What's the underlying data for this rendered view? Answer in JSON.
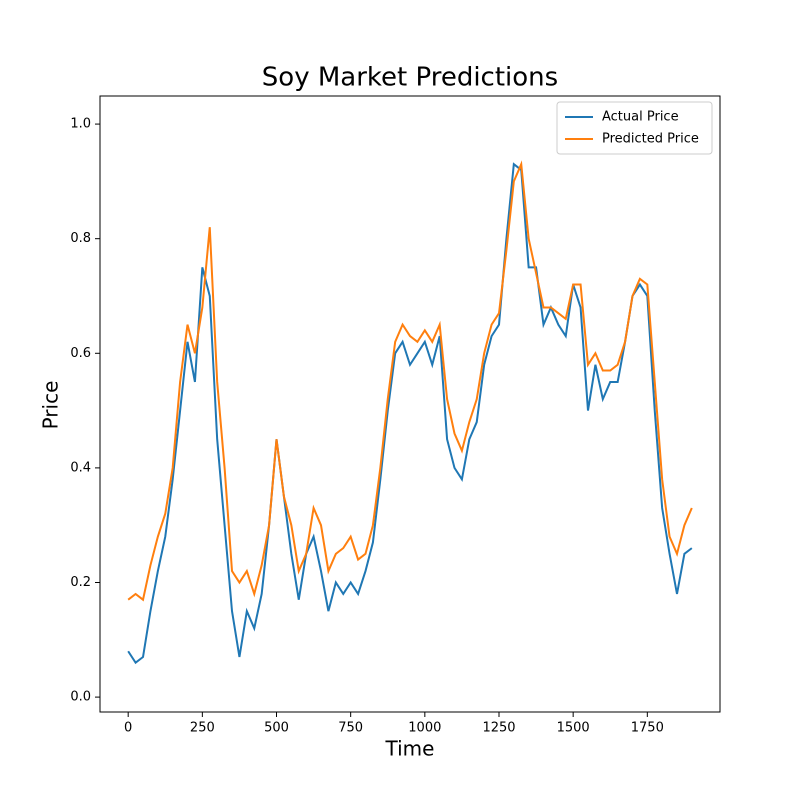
{
  "chart_data": {
    "type": "line",
    "title": "Soy Market Predictions",
    "x_label": "Time",
    "y_label": "Price",
    "x": [
      0,
      25,
      50,
      75,
      100,
      125,
      150,
      175,
      200,
      225,
      250,
      275,
      300,
      325,
      350,
      375,
      400,
      425,
      450,
      475,
      500,
      525,
      550,
      575,
      600,
      625,
      650,
      675,
      700,
      725,
      750,
      775,
      800,
      825,
      850,
      875,
      900,
      925,
      950,
      975,
      1000,
      1025,
      1050,
      1075,
      1100,
      1125,
      1150,
      1175,
      1200,
      1225,
      1250,
      1275,
      1300,
      1325,
      1350,
      1375,
      1400,
      1425,
      1450,
      1475,
      1500,
      1525,
      1550,
      1575,
      1600,
      1625,
      1650,
      1675,
      1700,
      1725,
      1750,
      1775,
      1800,
      1825,
      1850,
      1875,
      1900
    ],
    "series": [
      {
        "name": "Actual Price",
        "color": "#1f77b4",
        "values": [
          0.08,
          0.06,
          0.07,
          0.15,
          0.22,
          0.28,
          0.38,
          0.5,
          0.62,
          0.55,
          0.75,
          0.7,
          0.45,
          0.3,
          0.15,
          0.07,
          0.15,
          0.12,
          0.18,
          0.3,
          0.45,
          0.35,
          0.25,
          0.17,
          0.25,
          0.28,
          0.22,
          0.15,
          0.2,
          0.18,
          0.2,
          0.18,
          0.22,
          0.27,
          0.38,
          0.5,
          0.6,
          0.62,
          0.58,
          0.6,
          0.62,
          0.58,
          0.63,
          0.45,
          0.4,
          0.38,
          0.45,
          0.48,
          0.58,
          0.63,
          0.65,
          0.8,
          0.93,
          0.92,
          0.75,
          0.75,
          0.65,
          0.68,
          0.65,
          0.63,
          0.72,
          0.68,
          0.5,
          0.58,
          0.52,
          0.55,
          0.55,
          0.62,
          0.7,
          0.72,
          0.7,
          0.5,
          0.33,
          0.25,
          0.18,
          0.25,
          0.26
        ]
      },
      {
        "name": "Predicted Price",
        "color": "#ff7f0e",
        "values": [
          0.17,
          0.18,
          0.17,
          0.23,
          0.28,
          0.32,
          0.4,
          0.55,
          0.65,
          0.6,
          0.68,
          0.82,
          0.55,
          0.4,
          0.22,
          0.2,
          0.22,
          0.18,
          0.23,
          0.3,
          0.45,
          0.35,
          0.3,
          0.22,
          0.25,
          0.33,
          0.3,
          0.22,
          0.25,
          0.26,
          0.28,
          0.24,
          0.25,
          0.3,
          0.4,
          0.52,
          0.62,
          0.65,
          0.63,
          0.62,
          0.64,
          0.62,
          0.65,
          0.52,
          0.46,
          0.43,
          0.48,
          0.52,
          0.6,
          0.65,
          0.67,
          0.78,
          0.9,
          0.93,
          0.8,
          0.74,
          0.68,
          0.68,
          0.67,
          0.66,
          0.72,
          0.72,
          0.58,
          0.6,
          0.57,
          0.57,
          0.58,
          0.62,
          0.7,
          0.73,
          0.72,
          0.55,
          0.38,
          0.28,
          0.25,
          0.3,
          0.33
        ]
      }
    ],
    "xlim": [
      -95,
      1995
    ],
    "ylim": [
      -0.026,
      1.049
    ],
    "xticks": [
      0,
      250,
      500,
      750,
      1000,
      1250,
      1500,
      1750
    ],
    "yticks": [
      {
        "value": 0,
        "label": "0.0"
      },
      0.2,
      0.4,
      0.6,
      0.8,
      {
        "value": 1,
        "label": "1.0"
      }
    ],
    "legend": "upper right"
  }
}
